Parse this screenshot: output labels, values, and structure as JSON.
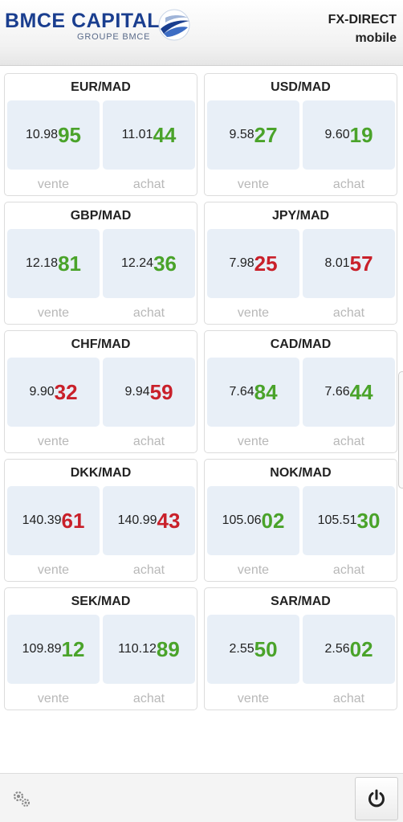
{
  "header": {
    "brand_name": "BMCE CAPITAL",
    "brand_sub": "GROUPE BMCE",
    "app_title_line1": "FX-DIRECT",
    "app_title_line2": "mobile"
  },
  "labels": {
    "sell": "vente",
    "buy": "achat"
  },
  "colors": {
    "up": "#4aa32a",
    "down": "#c9202a",
    "brand": "#1a3e8f",
    "box": "#e8eff7"
  },
  "pairs": [
    {
      "name": "EUR/MAD",
      "sell_base": "10.98",
      "sell_pips": "95",
      "buy_base": "11.01",
      "buy_pips": "44",
      "trend": "up"
    },
    {
      "name": "USD/MAD",
      "sell_base": "9.58",
      "sell_pips": "27",
      "buy_base": "9.60",
      "buy_pips": "19",
      "trend": "up"
    },
    {
      "name": "GBP/MAD",
      "sell_base": "12.18",
      "sell_pips": "81",
      "buy_base": "12.24",
      "buy_pips": "36",
      "trend": "up"
    },
    {
      "name": "JPY/MAD",
      "sell_base": "7.98",
      "sell_pips": "25",
      "buy_base": "8.01",
      "buy_pips": "57",
      "trend": "down"
    },
    {
      "name": "CHF/MAD",
      "sell_base": "9.90",
      "sell_pips": "32",
      "buy_base": "9.94",
      "buy_pips": "59",
      "trend": "down"
    },
    {
      "name": "CAD/MAD",
      "sell_base": "7.64",
      "sell_pips": "84",
      "buy_base": "7.66",
      "buy_pips": "44",
      "trend": "up"
    },
    {
      "name": "DKK/MAD",
      "sell_base": "140.39",
      "sell_pips": "61",
      "buy_base": "140.99",
      "buy_pips": "43",
      "trend": "down"
    },
    {
      "name": "NOK/MAD",
      "sell_base": "105.06",
      "sell_pips": "02",
      "buy_base": "105.51",
      "buy_pips": "30",
      "trend": "up"
    },
    {
      "name": "SEK/MAD",
      "sell_base": "109.89",
      "sell_pips": "12",
      "buy_base": "110.12",
      "buy_pips": "89",
      "trend": "up"
    },
    {
      "name": "SAR/MAD",
      "sell_base": "2.55",
      "sell_pips": "50",
      "buy_base": "2.56",
      "buy_pips": "02",
      "trend": "up"
    }
  ],
  "footer": {
    "settings_icon": "gears-icon",
    "power_icon": "power-icon"
  }
}
